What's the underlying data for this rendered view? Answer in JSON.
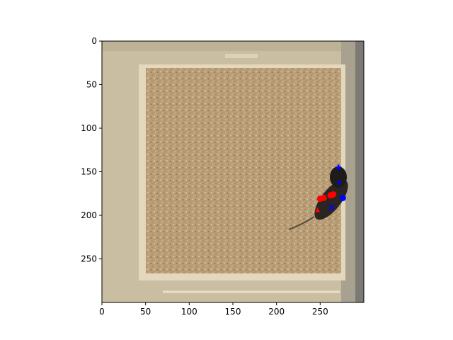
{
  "chart_data": {
    "type": "scatter",
    "title": "",
    "xlabel": "",
    "ylabel": "",
    "xlim": [
      0,
      300
    ],
    "ylim": [
      300,
      0
    ],
    "x_ticks": [
      0,
      50,
      100,
      150,
      200,
      250
    ],
    "y_ticks": [
      0,
      50,
      100,
      150,
      200,
      250
    ],
    "image": "top-down photo of an animal in an open-field box with sandy bedding",
    "series": [
      {
        "color": "#ff0000",
        "marker": "circle",
        "points": [
          {
            "x": 250,
            "y": 181
          },
          {
            "x": 254,
            "y": 180
          },
          {
            "x": 262,
            "y": 177
          },
          {
            "x": 265,
            "y": 176
          }
        ]
      },
      {
        "color": "#ff0000",
        "marker": "triangle",
        "points": [
          {
            "x": 247,
            "y": 194
          }
        ]
      },
      {
        "color": "#0000ff",
        "marker": "plus",
        "points": [
          {
            "x": 271,
            "y": 145
          }
        ]
      },
      {
        "color": "#0000ff",
        "marker": "circle",
        "points": [
          {
            "x": 276,
            "y": 180
          }
        ]
      },
      {
        "color": "#0000ff",
        "marker": "cross",
        "points": [
          {
            "x": 263,
            "y": 191
          }
        ]
      },
      {
        "color": "#0000ff",
        "marker": "triangle",
        "points": [
          {
            "x": 272,
            "y": 162
          }
        ]
      }
    ]
  }
}
